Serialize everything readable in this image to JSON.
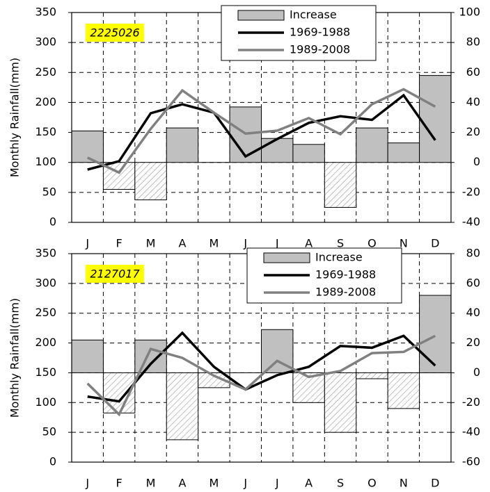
{
  "chart_data": [
    {
      "type": "bar-line",
      "annotation": "2225026",
      "ylabel": "Monthly Rainfall(mm)",
      "categories": [
        "J",
        "F",
        "M",
        "A",
        "M",
        "J",
        "J",
        "A",
        "S",
        "O",
        "N",
        "D"
      ],
      "ylim": [
        0,
        350
      ],
      "yticks": [
        0,
        50,
        100,
        150,
        200,
        250,
        300,
        350
      ],
      "y2lim": [
        -40,
        100
      ],
      "y2ticks": [
        -40,
        -20,
        0,
        20,
        40,
        60,
        80,
        100
      ],
      "grid": true,
      "legend": "upper right",
      "series": [
        {
          "name": "Increase",
          "type": "bar",
          "axis": "y2",
          "color": "#c0c0c0",
          "values": [
            21,
            -18,
            -25,
            23,
            0,
            37,
            16,
            12,
            -30,
            23,
            13,
            58
          ]
        },
        {
          "name": "1969-1988",
          "type": "line",
          "color": "#000000",
          "values": [
            88,
            102,
            182,
            197,
            183,
            110,
            139,
            166,
            177,
            171,
            212,
            137
          ]
        },
        {
          "name": "1989-2008",
          "type": "line",
          "color": "#808080",
          "values": [
            108,
            83,
            156,
            220,
            183,
            148,
            153,
            174,
            147,
            197,
            222,
            193
          ]
        }
      ]
    },
    {
      "type": "bar-line",
      "annotation": "2127017",
      "ylabel": "Monthly Rainfall(mm)",
      "categories": [
        "J",
        "F",
        "M",
        "A",
        "M",
        "J",
        "J",
        "A",
        "S",
        "O",
        "N",
        "D"
      ],
      "ylim": [
        0,
        350
      ],
      "yticks": [
        0,
        50,
        100,
        150,
        200,
        250,
        300,
        350
      ],
      "y2lim": [
        -60,
        80
      ],
      "y2ticks": [
        -60,
        -40,
        -20,
        0,
        20,
        40,
        60,
        80
      ],
      "grid": true,
      "legend": "upper right",
      "series": [
        {
          "name": "Increase",
          "type": "bar",
          "axis": "y2",
          "color": "#c0c0c0",
          "values": [
            22,
            -27,
            22,
            -45,
            -10,
            0,
            29,
            -20,
            -40,
            -4,
            -24,
            52
          ]
        },
        {
          "name": "1969-1988",
          "type": "line",
          "color": "#000000",
          "values": [
            110,
            102,
            165,
            217,
            160,
            122,
            146,
            160,
            195,
            192,
            212,
            162
          ]
        },
        {
          "name": "1989-2008",
          "type": "line",
          "color": "#808080",
          "values": [
            132,
            80,
            190,
            175,
            145,
            122,
            170,
            143,
            153,
            183,
            185,
            212
          ]
        }
      ]
    }
  ]
}
